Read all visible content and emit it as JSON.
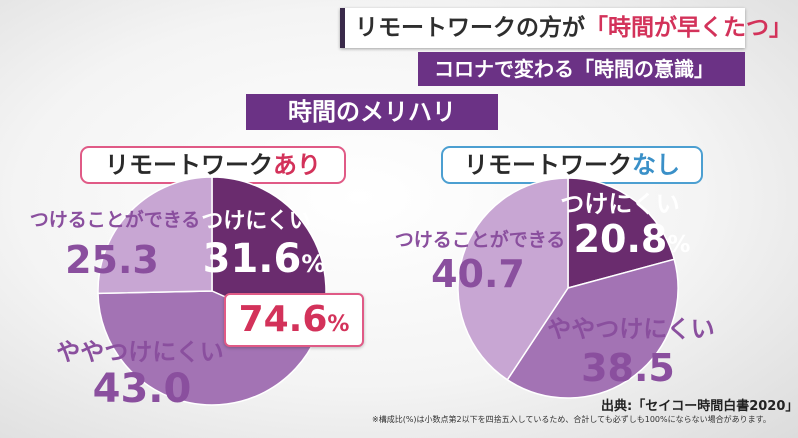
{
  "header": {
    "headline_main": "リモートワークの方が",
    "headline_highlight": "「時間が早くたつ」",
    "subline": "コロナで変わる「時間の意識」",
    "section_title": "時間のメリハリ"
  },
  "labels": {
    "with_remote_main": "リモートワーク",
    "with_remote_accent": "あり",
    "without_remote_main": "リモートワーク",
    "without_remote_accent": "なし"
  },
  "highlight": {
    "value": "74.6",
    "unit": "%"
  },
  "colors": {
    "dark": "#6a2c6e",
    "mid": "#a373b4",
    "light": "#c8a6d3",
    "pink": "#d3325a",
    "blue": "#3a90c8"
  },
  "chart_data": [
    {
      "type": "pie",
      "title": "リモートワークあり",
      "slices": [
        {
          "label": "つけにくい",
          "value": 31.6,
          "value_text": "31.6",
          "unit": "%",
          "color": "#6a2c6e"
        },
        {
          "label": "ややつけにくい",
          "value": 43.0,
          "value_text": "43.0",
          "unit": "",
          "color": "#a373b4"
        },
        {
          "label": "つけることができる",
          "value": 25.3,
          "value_text": "25.3",
          "unit": "",
          "color": "#c8a6d3"
        }
      ]
    },
    {
      "type": "pie",
      "title": "リモートワークなし",
      "slices": [
        {
          "label": "つけにくい",
          "value": 20.8,
          "value_text": "20.8",
          "unit": "%",
          "color": "#6a2c6e"
        },
        {
          "label": "ややつけにくい",
          "value": 38.5,
          "value_text": "38.5",
          "unit": "",
          "color": "#a373b4"
        },
        {
          "label": "つけることができる",
          "value": 40.7,
          "value_text": "40.7",
          "unit": "",
          "color": "#c8a6d3"
        }
      ]
    }
  ],
  "footer": {
    "source": "出典:「セイコー時間白書2020」",
    "note": "※構成比(%)は小数点第2以下を四捨五入しているため、合計しても必ずしも100%にならない場合があります。"
  }
}
